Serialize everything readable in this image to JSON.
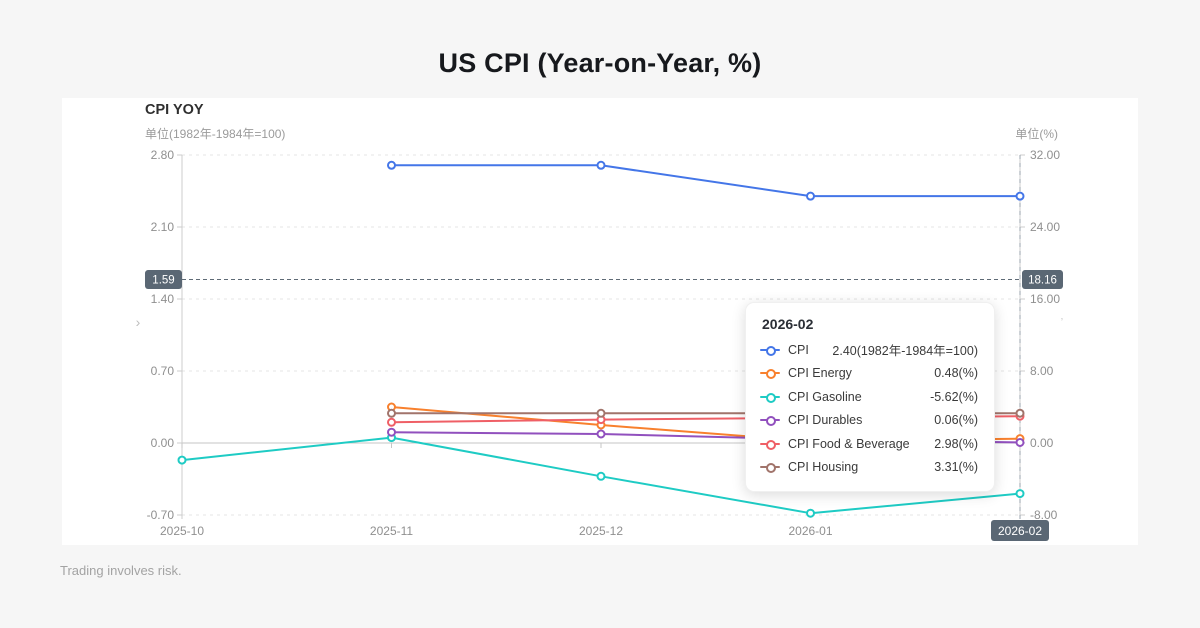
{
  "header": {
    "title": "US CPI (Year-on-Year, %)"
  },
  "chart": {
    "title": "CPI YOY",
    "unit_left": "单位(1982年-1984年=100)",
    "unit_right": "单位(%)"
  },
  "footer": {
    "disclaimer": "Trading involves risk."
  },
  "colors": {
    "badge_bg": "#5a6774",
    "badge_text": "#ffffff",
    "grid": "#e4e4e4",
    "zero_line": "#c6c6c6",
    "axis_line": "#cccccc",
    "tick_label": "#8f8f8f",
    "marker_line": "#5f6b76",
    "crosshair": "#9aa3ad"
  },
  "chart_data": {
    "type": "line",
    "title": "CPI YOY",
    "xlabel": "",
    "ylabel_left": "单位(1982年-1984年=100)",
    "ylabel_right": "单位(%)",
    "grid": true,
    "categories": [
      "2025-10",
      "2025-11",
      "2025-12",
      "2026-01",
      "2026-02"
    ],
    "highlighted_category": "2026-02",
    "left_axis": {
      "ticks": [
        "2.80",
        "2.10",
        "1.40",
        "0.70",
        "0.00",
        "-0.70"
      ],
      "values": [
        2.8,
        2.1,
        1.4,
        0.7,
        0,
        -0.7
      ],
      "range": [
        -0.7,
        2.8
      ]
    },
    "right_axis": {
      "ticks": [
        "32.00",
        "24.00",
        "16.00",
        "8.00",
        "0.00",
        "-8.00"
      ],
      "values": [
        32,
        24,
        16,
        8,
        0,
        -8
      ],
      "range": [
        -8,
        32
      ]
    },
    "marker_line": {
      "left_label": "1.59",
      "right_label": "18.16",
      "value_right": 18.16
    },
    "series": [
      {
        "name": "CPI",
        "axis": "left",
        "color": "#4476e8",
        "values": [
          null,
          2.7,
          2.7,
          2.4,
          2.4
        ]
      },
      {
        "name": "CPI Energy",
        "axis": "right",
        "color": "#f8802d",
        "values": [
          null,
          4.0,
          2.0,
          0.2,
          0.48
        ]
      },
      {
        "name": "CPI Gasoline",
        "axis": "right",
        "color": "#1ecbc4",
        "values": [
          -1.9,
          0.6,
          -3.7,
          -7.8,
          -5.62
        ]
      },
      {
        "name": "CPI Durables",
        "axis": "right",
        "color": "#9150be",
        "values": [
          null,
          1.2,
          1.0,
          0.4,
          0.06
        ]
      },
      {
        "name": "CPI Food & Beverage",
        "axis": "right",
        "color": "#ef5f66",
        "values": [
          null,
          2.3,
          2.6,
          2.8,
          2.98
        ]
      },
      {
        "name": "CPI Housing",
        "axis": "right",
        "color": "#a1746b",
        "values": [
          null,
          3.3,
          3.3,
          3.3,
          3.31
        ]
      }
    ]
  },
  "tooltip": {
    "title": "2026-02",
    "rows": [
      {
        "label": "CPI",
        "value": "2.40(1982年-1984年=100)",
        "color": "#4476e8"
      },
      {
        "label": "CPI Energy",
        "value": "0.48(%)",
        "color": "#f8802d"
      },
      {
        "label": "CPI Gasoline",
        "value": "-5.62(%)",
        "color": "#1ecbc4"
      },
      {
        "label": "CPI Durables",
        "value": "0.06(%)",
        "color": "#9150be"
      },
      {
        "label": "CPI Food & Beverage",
        "value": "2.98(%)",
        "color": "#ef5f66"
      },
      {
        "label": "CPI Housing",
        "value": "3.31(%)",
        "color": "#a1746b"
      }
    ]
  }
}
